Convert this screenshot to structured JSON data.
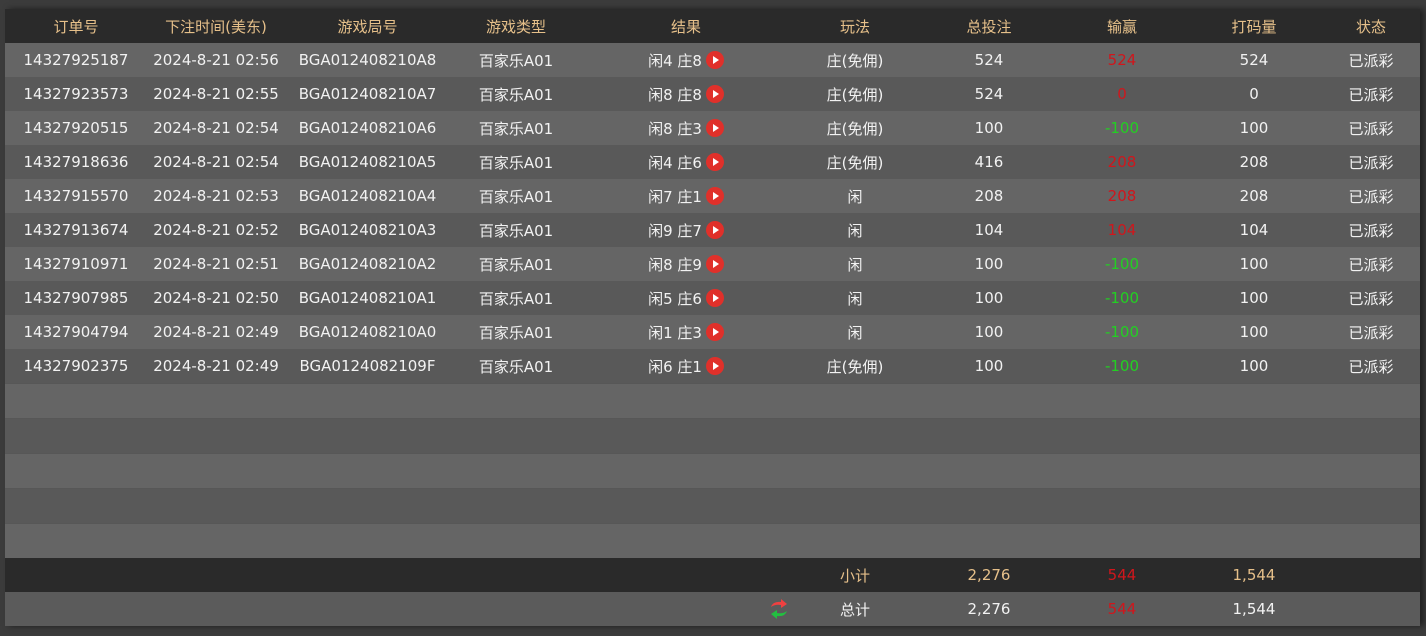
{
  "headers": [
    "订单号",
    "下注时间(美东)",
    "游戏局号",
    "游戏类型",
    "结果",
    "玩法",
    "总投注",
    "输赢",
    "打码量",
    "状态"
  ],
  "rows": [
    {
      "order": "14327925187",
      "time": "2024-8-21 02:56",
      "round": "BGA012408210A8",
      "game": "百家乐A01",
      "result": "闲4 庄8",
      "play": "庄(免佣)",
      "bet": "524",
      "win": "524",
      "win_color": "red",
      "valid": "524",
      "status": "已派彩"
    },
    {
      "order": "14327923573",
      "time": "2024-8-21 02:55",
      "round": "BGA012408210A7",
      "game": "百家乐A01",
      "result": "闲8 庄8",
      "play": "庄(免佣)",
      "bet": "524",
      "win": "0",
      "win_color": "red",
      "valid": "0",
      "status": "已派彩"
    },
    {
      "order": "14327920515",
      "time": "2024-8-21 02:54",
      "round": "BGA012408210A6",
      "game": "百家乐A01",
      "result": "闲8 庄3",
      "play": "庄(免佣)",
      "bet": "100",
      "win": "-100",
      "win_color": "green",
      "valid": "100",
      "status": "已派彩"
    },
    {
      "order": "14327918636",
      "time": "2024-8-21 02:54",
      "round": "BGA012408210A5",
      "game": "百家乐A01",
      "result": "闲4 庄6",
      "play": "庄(免佣)",
      "bet": "416",
      "win": "208",
      "win_color": "red",
      "valid": "208",
      "status": "已派彩"
    },
    {
      "order": "14327915570",
      "time": "2024-8-21 02:53",
      "round": "BGA012408210A4",
      "game": "百家乐A01",
      "result": "闲7 庄1",
      "play": "闲",
      "bet": "208",
      "win": "208",
      "win_color": "red",
      "valid": "208",
      "status": "已派彩"
    },
    {
      "order": "14327913674",
      "time": "2024-8-21 02:52",
      "round": "BGA012408210A3",
      "game": "百家乐A01",
      "result": "闲9 庄7",
      "play": "闲",
      "bet": "104",
      "win": "104",
      "win_color": "red",
      "valid": "104",
      "status": "已派彩"
    },
    {
      "order": "14327910971",
      "time": "2024-8-21 02:51",
      "round": "BGA012408210A2",
      "game": "百家乐A01",
      "result": "闲8 庄9",
      "play": "闲",
      "bet": "100",
      "win": "-100",
      "win_color": "green",
      "valid": "100",
      "status": "已派彩"
    },
    {
      "order": "14327907985",
      "time": "2024-8-21 02:50",
      "round": "BGA012408210A1",
      "game": "百家乐A01",
      "result": "闲5 庄6",
      "play": "闲",
      "bet": "100",
      "win": "-100",
      "win_color": "green",
      "valid": "100",
      "status": "已派彩"
    },
    {
      "order": "14327904794",
      "time": "2024-8-21 02:49",
      "round": "BGA012408210A0",
      "game": "百家乐A01",
      "result": "闲1 庄3",
      "play": "闲",
      "bet": "100",
      "win": "-100",
      "win_color": "green",
      "valid": "100",
      "status": "已派彩"
    },
    {
      "order": "14327902375",
      "time": "2024-8-21 02:49",
      "round": "BGA0124082109F",
      "game": "百家乐A01",
      "result": "闲6 庄1",
      "play": "庄(免佣)",
      "bet": "100",
      "win": "-100",
      "win_color": "green",
      "valid": "100",
      "status": "已派彩"
    }
  ],
  "subtotal": {
    "label": "小计",
    "bet": "2,276",
    "win": "544",
    "valid": "1,544"
  },
  "total": {
    "label": "总计",
    "bet": "2,276",
    "win": "544",
    "valid": "1,544",
    "icon": "refresh-icon"
  },
  "colors": {
    "header_text": "#e6c08a",
    "loss_win_red": "#d0161c",
    "green": "#22d022"
  }
}
